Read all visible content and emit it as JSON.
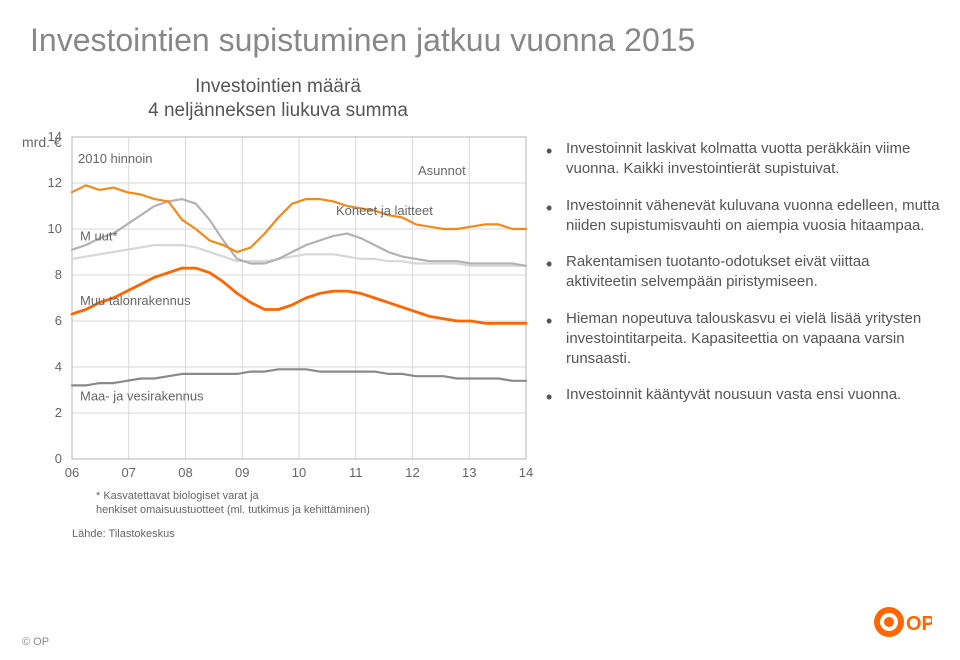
{
  "title": "Investointien supistuminen jatkuu vuonna 2015",
  "chart": {
    "heading_l1": "Investointien määrä",
    "heading_l2": "4 neljänneksen liukuva summa",
    "y_unit": "mrd. €",
    "y_sub": "2010 hinnoin",
    "x_ticks": [
      "06",
      "07",
      "08",
      "09",
      "10",
      "11",
      "12",
      "13",
      "14"
    ],
    "y_ticks": [
      0,
      2,
      4,
      6,
      8,
      10,
      12,
      14
    ],
    "series": {
      "asunnot": {
        "label": "Asunnot",
        "color": "#f08a1d",
        "width": 2.2,
        "values": [
          11.6,
          11.9,
          11.7,
          11.8,
          11.6,
          11.5,
          11.3,
          11.2,
          10.4,
          10.0,
          9.5,
          9.3,
          9.0,
          9.2,
          9.8,
          10.5,
          11.1,
          11.3,
          11.3,
          11.2,
          11.0,
          10.9,
          10.8,
          10.6,
          10.5,
          10.2,
          10.1,
          10.0,
          10.0,
          10.1,
          10.2,
          10.2,
          10.0,
          10.0
        ]
      },
      "koneet": {
        "label": "Koneet ja laitteet",
        "color": "#b2b2b2",
        "width": 2.2,
        "values": [
          9.1,
          9.3,
          9.6,
          9.8,
          10.2,
          10.6,
          11.0,
          11.2,
          11.3,
          11.1,
          10.4,
          9.5,
          8.7,
          8.5,
          8.5,
          8.7,
          9.0,
          9.3,
          9.5,
          9.7,
          9.8,
          9.6,
          9.3,
          9.0,
          8.8,
          8.7,
          8.6,
          8.6,
          8.6,
          8.5,
          8.5,
          8.5,
          8.5,
          8.4
        ]
      },
      "muut": {
        "label": "M uut*",
        "color": "#d7d7d7",
        "width": 2.2,
        "values": [
          8.7,
          8.8,
          8.9,
          9.0,
          9.1,
          9.2,
          9.3,
          9.3,
          9.3,
          9.2,
          9.0,
          8.8,
          8.6,
          8.6,
          8.6,
          8.7,
          8.8,
          8.9,
          8.9,
          8.9,
          8.8,
          8.7,
          8.7,
          8.6,
          8.6,
          8.5,
          8.5,
          8.5,
          8.5,
          8.4,
          8.4,
          8.4,
          8.4,
          8.4
        ]
      },
      "muu_talon": {
        "label": "Muu talonrakennus",
        "color": "#ff6600",
        "width": 2.8,
        "values": [
          6.3,
          6.5,
          6.8,
          7.0,
          7.3,
          7.6,
          7.9,
          8.1,
          8.3,
          8.3,
          8.1,
          7.7,
          7.2,
          6.8,
          6.5,
          6.5,
          6.7,
          7.0,
          7.2,
          7.3,
          7.3,
          7.2,
          7.0,
          6.8,
          6.6,
          6.4,
          6.2,
          6.1,
          6.0,
          6.0,
          5.9,
          5.9,
          5.9,
          5.9
        ]
      },
      "maa_vesi": {
        "label": "Maa- ja vesirakennus",
        "color": "#8a8a8a",
        "width": 2.2,
        "values": [
          3.2,
          3.2,
          3.3,
          3.3,
          3.4,
          3.5,
          3.5,
          3.6,
          3.7,
          3.7,
          3.7,
          3.7,
          3.7,
          3.8,
          3.8,
          3.9,
          3.9,
          3.9,
          3.8,
          3.8,
          3.8,
          3.8,
          3.8,
          3.7,
          3.7,
          3.6,
          3.6,
          3.6,
          3.5,
          3.5,
          3.5,
          3.5,
          3.4,
          3.4
        ]
      }
    },
    "note_l1": "* Kasvatettavat biologiset varat ja",
    "note_l2": "   henkiset omaisuustuotteet (ml. tutkimus ja kehittäminen)",
    "source": "Lähde: Tilastokeskus",
    "grid_color": "#d9d9d9",
    "axis_color": "#b5b5b5",
    "background": "#ffffff"
  },
  "bullets": [
    "Investoinnit laskivat kolmatta vuotta peräkkäin viime vuonna. Kaikki investointierät supistuivat.",
    "Investoinnit vähenevät kuluvana vuonna edelleen, mutta niiden supistumisvauhti on aiempia vuosia hitaampaa.",
    "Rakentamisen tuotanto-odotukset eivät viittaa aktiviteetin selvempään piristymiseen.",
    "Hieman nopeutuva talouskasvu ei vielä lisää yritysten investointitarpeita. Kapasiteettia on vapaana varsin runsaasti.",
    "Investoinnit kääntyvät nousuun vasta ensi vuonna."
  ],
  "footer": "© OP",
  "logo_colors": {
    "outer": "#ff6600",
    "inner": "#ffffff"
  }
}
